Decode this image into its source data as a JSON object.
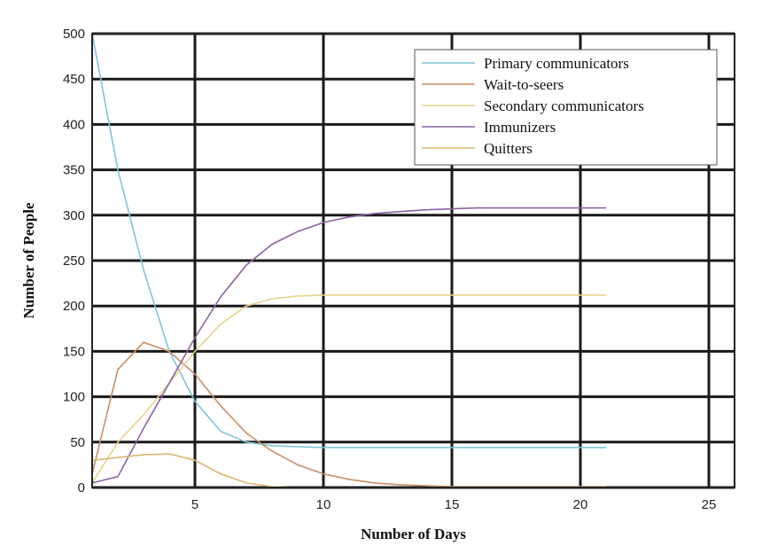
{
  "chart_data": {
    "type": "line",
    "title": "",
    "xlabel": "Number of Days",
    "ylabel": "Number of People",
    "xlim": [
      1,
      26
    ],
    "ylim": [
      0,
      500
    ],
    "xticks": [
      5,
      10,
      15,
      20,
      25
    ],
    "yticks": [
      0,
      50,
      100,
      150,
      200,
      250,
      300,
      350,
      400,
      450,
      500
    ],
    "grid": true,
    "legend_position": "top-right",
    "series": [
      {
        "name": "Primary communicators",
        "color": "#7ec4dc",
        "x": [
          1,
          2,
          3,
          4,
          5,
          6,
          7,
          8,
          9,
          10,
          11,
          12,
          13,
          14,
          15,
          16,
          17,
          18,
          19,
          20,
          21
        ],
        "y": [
          500,
          350,
          240,
          150,
          95,
          62,
          50,
          46,
          45,
          44,
          44,
          44,
          44,
          44,
          44,
          44,
          44,
          44,
          44,
          44,
          44
        ]
      },
      {
        "name": "Wait-to-seers",
        "color": "#c98e62",
        "x": [
          1,
          2,
          3,
          4,
          5,
          6,
          7,
          8,
          9,
          10,
          11,
          12,
          13,
          14,
          15,
          16,
          17,
          18,
          19,
          20,
          21
        ],
        "y": [
          15,
          130,
          160,
          150,
          125,
          90,
          60,
          40,
          25,
          15,
          9,
          5,
          3,
          2,
          1,
          1,
          1,
          1,
          1,
          1,
          1
        ]
      },
      {
        "name": "Secondary communicators",
        "color": "#e8d28c",
        "x": [
          1,
          2,
          3,
          4,
          5,
          6,
          7,
          8,
          9,
          10,
          11,
          12,
          13,
          14,
          15,
          16,
          17,
          18,
          19,
          20,
          21
        ],
        "y": [
          5,
          50,
          80,
          115,
          150,
          180,
          200,
          208,
          211,
          212,
          212,
          212,
          212,
          212,
          212,
          212,
          212,
          212,
          212,
          212,
          212
        ]
      },
      {
        "name": "Immunizers",
        "color": "#8a63a6",
        "x": [
          1,
          2,
          3,
          4,
          5,
          6,
          7,
          8,
          9,
          10,
          11,
          12,
          13,
          14,
          15,
          16,
          17,
          18,
          19,
          20,
          21
        ],
        "y": [
          5,
          12,
          65,
          115,
          165,
          210,
          245,
          268,
          282,
          292,
          298,
          302,
          304,
          306,
          307,
          308,
          308,
          308,
          308,
          308,
          308
        ]
      },
      {
        "name": "Quitters",
        "color": "#d8b870",
        "x": [
          1,
          2,
          3,
          4,
          5,
          6,
          7,
          8,
          9,
          10,
          11,
          12,
          13,
          14,
          15,
          16,
          17,
          18,
          19,
          20,
          21
        ],
        "y": [
          30,
          33,
          36,
          37,
          30,
          15,
          5,
          1,
          0,
          0,
          0,
          0,
          0,
          0,
          0,
          0,
          0,
          0,
          0,
          0,
          0
        ]
      }
    ]
  }
}
